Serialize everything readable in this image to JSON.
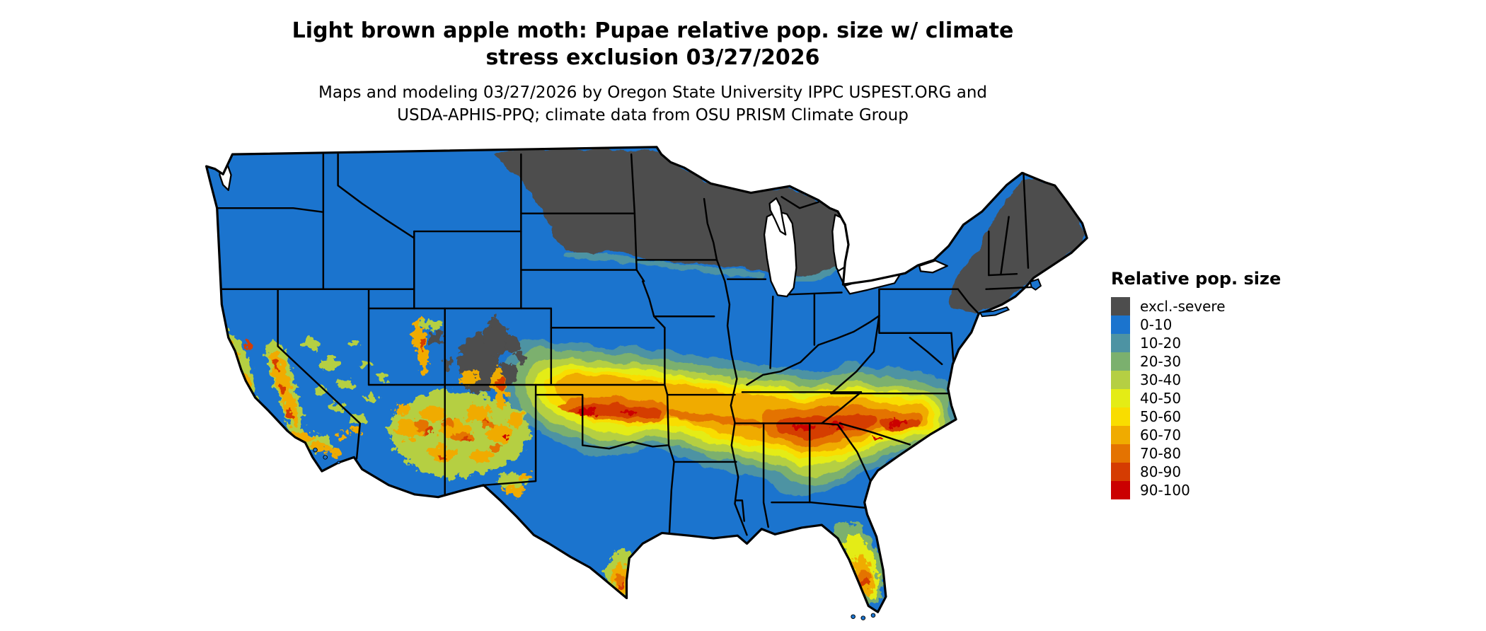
{
  "header": {
    "title_line1": "Light brown apple moth: Pupae relative pop. size w/ climate",
    "title_line2": "stress exclusion 03/27/2026",
    "subtitle_line1": "Maps and modeling 03/27/2026 by Oregon State University IPPC USPEST.ORG and",
    "subtitle_line2": "USDA-APHIS-PPQ; climate data from OSU PRISM Climate Group"
  },
  "legend": {
    "title": "Relative pop. size",
    "items": [
      {
        "label": "excl.-severe",
        "color": "#4D4D4D"
      },
      {
        "label": "0-10",
        "color": "#1B74CE"
      },
      {
        "label": "10-20",
        "color": "#4D93A3"
      },
      {
        "label": "20-30",
        "color": "#7BB06E"
      },
      {
        "label": "30-40",
        "color": "#B5CF43"
      },
      {
        "label": "40-50",
        "color": "#E4EC15"
      },
      {
        "label": "50-60",
        "color": "#F9DD00"
      },
      {
        "label": "60-70",
        "color": "#F0AB00"
      },
      {
        "label": "70-80",
        "color": "#E47301"
      },
      {
        "label": "80-90",
        "color": "#D53C02"
      },
      {
        "label": "90-100",
        "color": "#CB0001"
      }
    ]
  },
  "map": {
    "type": "choropleth-raster",
    "area": "Contiguous United States",
    "water_color": "#FFFFFF",
    "state_border_color": "#000000",
    "base_category": "0-10",
    "regions": [
      {
        "area": "Northern tier: eastern ND, northern MN, northern WI, upper and northern lower MI",
        "category": "excl.-severe"
      },
      {
        "area": "Adirondacks NY and northern New England (VT, NH, most of ME)",
        "category": "excl.-severe"
      },
      {
        "area": "Central Idaho / Yellowstone / Colorado Rockies mountain patches",
        "category": "excl.-severe"
      },
      {
        "area": "Most of the country: Pacific NW, Great Basin, plains, Texas, Gulf states, Midwest, Northeast",
        "category": "0-10"
      },
      {
        "area": "Mid-latitude band from E Colorado and S Kansas / N Oklahoma through Missouri, Kentucky-Tennessee to Virginia-North Carolina",
        "category": "60-70 to 90-100 core with 10-60 fringes"
      },
      {
        "area": "California coast ranges and Sierra foothills",
        "category": "40-90 patches"
      },
      {
        "area": "Arizona / New Mexico highlands",
        "category": "30-90 patches"
      },
      {
        "area": "Lower Rio Grande valley, south Texas",
        "category": "60-90"
      },
      {
        "area": "South-central Florida",
        "category": "60-90"
      }
    ]
  }
}
